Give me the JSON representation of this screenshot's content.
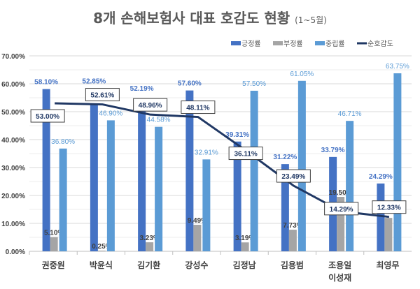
{
  "chart_data": {
    "type": "bar",
    "title": "8개 손해보험사 대표 호감도 현황",
    "subtitle": "(1~5월)",
    "categories": [
      "권중원",
      "박윤식",
      "김기환",
      "강성수",
      "김정남",
      "김용범",
      "조용일\n이성재",
      "최영무"
    ],
    "ylim": [
      0,
      70
    ],
    "yticks": [
      "0.00%",
      "10.00%",
      "20.00%",
      "30.00%",
      "40.00%",
      "50.00%",
      "60.00%",
      "70.00%"
    ],
    "grid": true,
    "legend_position": "top-right",
    "series": [
      {
        "name": "긍정률",
        "type": "bar",
        "color": "#4472C4",
        "values": [
          58.1,
          52.85,
          52.19,
          57.6,
          39.31,
          31.22,
          33.79,
          24.29
        ],
        "labels": [
          "58.10%",
          "52.85%",
          "52.19%",
          "57.60%",
          "39.31%",
          "31.22%",
          "33.79%",
          "24.29%"
        ]
      },
      {
        "name": "부정률",
        "type": "bar",
        "color": "#A5A5A5",
        "values": [
          5.1,
          0.25,
          3.23,
          9.49,
          3.19,
          7.73,
          19.5,
          11.96
        ],
        "labels": [
          "5.10%",
          "0.25%",
          "3.23%",
          "9.49%",
          "3.19%",
          "7.73%",
          "19.50%",
          ""
        ]
      },
      {
        "name": "중립률",
        "type": "bar",
        "color": "#5B9BD5",
        "values": [
          36.8,
          46.9,
          44.58,
          32.91,
          57.5,
          61.05,
          46.71,
          63.75
        ],
        "labels": [
          "36.80%",
          "46.90%",
          "44.58%",
          "32.91%",
          "57.50%",
          "61.05%",
          "46.71%",
          "63.75%"
        ]
      },
      {
        "name": "순호감도",
        "type": "line",
        "color": "#203864",
        "values": [
          53.0,
          52.61,
          48.96,
          48.11,
          36.11,
          23.49,
          14.29,
          12.33
        ],
        "labels": [
          "53.00%",
          "52.61%",
          "48.96%",
          "48.11%",
          "36.11%",
          "23.49%",
          "14.29%",
          "12.33%"
        ]
      }
    ]
  }
}
